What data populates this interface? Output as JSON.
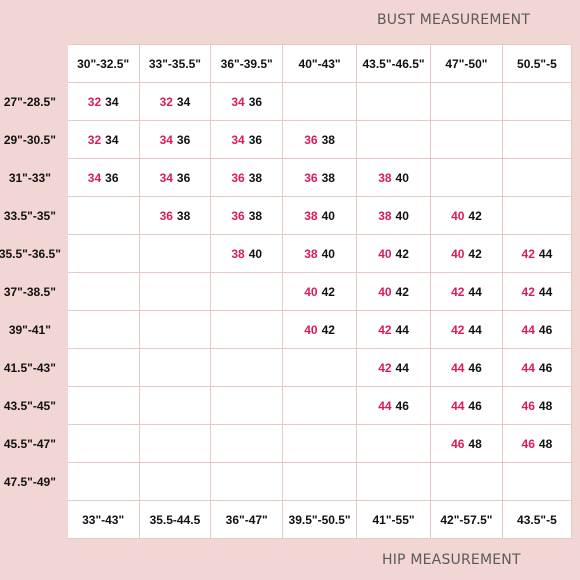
{
  "bust_label": "BUST MEASUREMENT",
  "hip_label": "HIP MEASUREMENT",
  "bust_columns": [
    "30\"-32.5\"",
    "33\"-35.5\"",
    "36\"-39.5\"",
    "40\"-43\"",
    "43.5\"-46.5\"",
    "47\"-50\"",
    "50.5\"-5"
  ],
  "hip_columns": [
    "33\"-43\"",
    "35.5-44.5",
    "36\"-47\"",
    "39.5\"-50.5\"",
    "41\"-55\"",
    "42\"-57.5\"",
    "43.5\"-5"
  ],
  "rows": [
    {
      "waist": "27\"-28.5\"",
      "cells": [
        [
          "32",
          "34"
        ],
        [
          "32",
          "34"
        ],
        [
          "34",
          "36"
        ],
        [],
        [],
        [],
        []
      ]
    },
    {
      "waist": "29\"-30.5\"",
      "cells": [
        [
          "32",
          "34"
        ],
        [
          "34",
          "36"
        ],
        [
          "34",
          "36"
        ],
        [
          "36",
          "38"
        ],
        [],
        [],
        []
      ]
    },
    {
      "waist": "31\"-33\"",
      "cells": [
        [
          "34",
          "36"
        ],
        [
          "34",
          "36"
        ],
        [
          "36",
          "38"
        ],
        [
          "36",
          "38"
        ],
        [
          "38",
          "40"
        ],
        [],
        []
      ]
    },
    {
      "waist": "33.5\"-35\"",
      "cells": [
        [],
        [
          "36",
          "38"
        ],
        [
          "36",
          "38"
        ],
        [
          "38",
          "40"
        ],
        [
          "38",
          "40"
        ],
        [
          "40",
          "42"
        ],
        []
      ]
    },
    {
      "waist": "35.5\"-36.5\"",
      "cells": [
        [],
        [],
        [
          "38",
          "40"
        ],
        [
          "38",
          "40"
        ],
        [
          "40",
          "42"
        ],
        [
          "40",
          "42"
        ],
        [
          "42",
          "44"
        ]
      ]
    },
    {
      "waist": "37\"-38.5\"",
      "cells": [
        [],
        [],
        [],
        [
          "40",
          "42"
        ],
        [
          "40",
          "42"
        ],
        [
          "42",
          "44"
        ],
        [
          "42",
          "44"
        ]
      ]
    },
    {
      "waist": "39\"-41\"",
      "cells": [
        [],
        [],
        [],
        [
          "40",
          "42"
        ],
        [
          "42",
          "44"
        ],
        [
          "42",
          "44"
        ],
        [
          "44",
          "46"
        ]
      ]
    },
    {
      "waist": "41.5\"-43\"",
      "cells": [
        [],
        [],
        [],
        [],
        [
          "42",
          "44"
        ],
        [
          "44",
          "46"
        ],
        [
          "44",
          "46"
        ]
      ]
    },
    {
      "waist": "43.5\"-45\"",
      "cells": [
        [],
        [],
        [],
        [],
        [
          "44",
          "46"
        ],
        [
          "44",
          "46"
        ],
        [
          "46",
          "48"
        ]
      ]
    },
    {
      "waist": "45.5\"-47\"",
      "cells": [
        [],
        [],
        [],
        [],
        [],
        [
          "46",
          "48"
        ],
        [
          "46",
          "48"
        ]
      ]
    },
    {
      "waist": "47.5\"-49\"",
      "cells": [
        [],
        [],
        [],
        [],
        [],
        [],
        []
      ]
    }
  ],
  "colors": {
    "background": "#f2d6d4",
    "accent": "#d81b60",
    "text": "#111111",
    "grid": "#e7c9c7"
  }
}
